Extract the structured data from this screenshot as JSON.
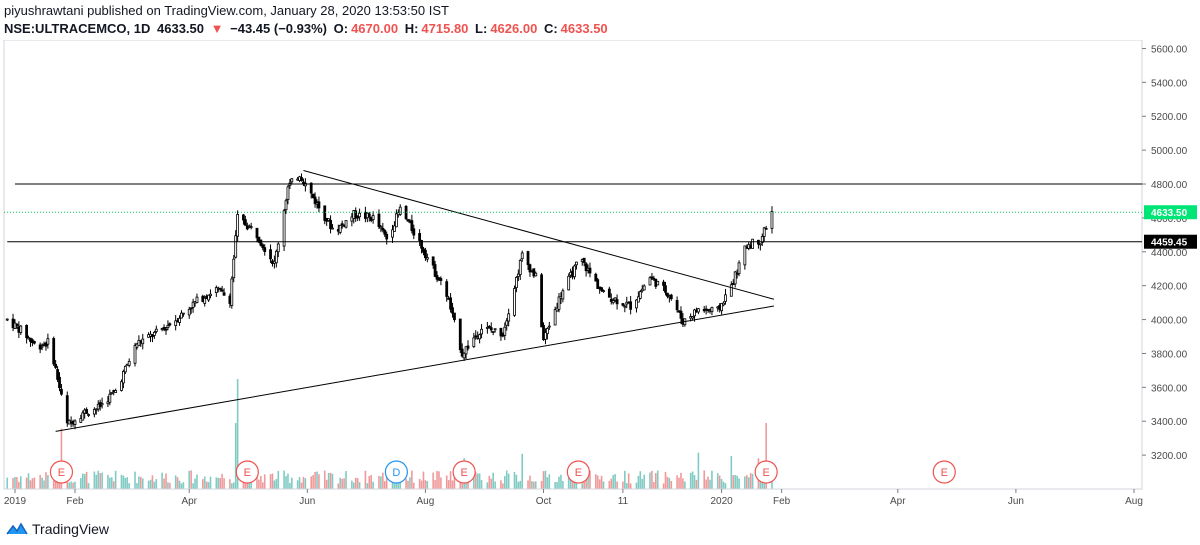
{
  "header": {
    "publish_line": "piyushrawtani published on TradingView.com, January 28, 2020 13:53:50 IST",
    "symbol": "NSE:ULTRACEMCO, 1D",
    "last": "4633.50",
    "change": "−43.45 (−0.93%)",
    "o_label": "O:",
    "o_value": "4670.00",
    "h_label": "H:",
    "h_value": "4715.80",
    "l_label": "L:",
    "l_value": "4626.00",
    "c_label": "C:",
    "c_value": "4633.50"
  },
  "footer": {
    "brand": "TradingView",
    "logo_icon": "tradingview-logo-icon"
  },
  "colors": {
    "up": "#26a69a",
    "down": "#ef5350",
    "candle": "#000000",
    "last_price_line": "#00c853",
    "last_price_badge": "#00e676",
    "level_badge": "#000000",
    "event_earnings": "#ef5350",
    "event_dividend": "#2196f3"
  },
  "chart_data": {
    "type": "candlestick",
    "symbol": "NSE:ULTRACEMCO",
    "interval": "1D",
    "ylim": [
      3000,
      5650
    ],
    "y_ticks": [
      3200,
      3400,
      3600,
      3800,
      4000,
      4200,
      4400,
      4600,
      4800,
      5000,
      5200,
      5400,
      5600
    ],
    "y_tick_labels": [
      "3200.00",
      "3400.00",
      "3600.00",
      "3800.00",
      "4000.00",
      "4200.00",
      "4400.00",
      "4600.00",
      "4800.00",
      "5000.00",
      "5200.00",
      "5400.00",
      "5600.00"
    ],
    "x_ticks": [
      {
        "label": "2019",
        "date": "2019-01-01"
      },
      {
        "label": "Feb",
        "date": "2019-02-01"
      },
      {
        "label": "Apr",
        "date": "2019-04-01"
      },
      {
        "label": "Jun",
        "date": "2019-06-01"
      },
      {
        "label": "Aug",
        "date": "2019-08-01"
      },
      {
        "label": "Oct",
        "date": "2019-10-01"
      },
      {
        "label": "11",
        "date": "2019-11-11"
      },
      {
        "label": "2020",
        "date": "2020-01-01"
      },
      {
        "label": "Feb",
        "date": "2020-02-01"
      },
      {
        "label": "Apr",
        "date": "2020-04-01"
      },
      {
        "label": "Jun",
        "date": "2020-06-01"
      },
      {
        "label": "Aug",
        "date": "2020-08-01"
      }
    ],
    "price_path": [
      [
        "2018-12-28",
        4000
      ],
      [
        "2019-01-05",
        3930
      ],
      [
        "2019-01-12",
        3840
      ],
      [
        "2019-01-19",
        3870
      ],
      [
        "2019-01-24",
        3600
      ],
      [
        "2019-01-28",
        3380
      ],
      [
        "2019-02-05",
        3450
      ],
      [
        "2019-02-13",
        3480
      ],
      [
        "2019-02-22",
        3580
      ],
      [
        "2019-03-05",
        3860
      ],
      [
        "2019-03-15",
        3920
      ],
      [
        "2019-03-25",
        4000
      ],
      [
        "2019-04-05",
        4110
      ],
      [
        "2019-04-15",
        4180
      ],
      [
        "2019-04-22",
        4120
      ],
      [
        "2019-04-26",
        4600
      ],
      [
        "2019-05-05",
        4520
      ],
      [
        "2019-05-15",
        4330
      ],
      [
        "2019-05-22",
        4780
      ],
      [
        "2019-05-28",
        4860
      ],
      [
        "2019-06-05",
        4700
      ],
      [
        "2019-06-15",
        4520
      ],
      [
        "2019-06-25",
        4620
      ],
      [
        "2019-07-05",
        4600
      ],
      [
        "2019-07-12",
        4480
      ],
      [
        "2019-07-19",
        4650
      ],
      [
        "2019-07-28",
        4480
      ],
      [
        "2019-08-05",
        4300
      ],
      [
        "2019-08-12",
        4150
      ],
      [
        "2019-08-20",
        3800
      ],
      [
        "2019-08-30",
        3950
      ],
      [
        "2019-09-10",
        3920
      ],
      [
        "2019-09-20",
        4380
      ],
      [
        "2019-09-27",
        4250
      ],
      [
        "2019-10-01",
        3880
      ],
      [
        "2019-10-10",
        4150
      ],
      [
        "2019-10-20",
        4360
      ],
      [
        "2019-11-01",
        4150
      ],
      [
        "2019-11-15",
        4080
      ],
      [
        "2019-11-25",
        4250
      ],
      [
        "2019-12-05",
        4150
      ],
      [
        "2019-12-12",
        3990
      ],
      [
        "2019-12-20",
        4060
      ],
      [
        "2019-12-30",
        4050
      ],
      [
        "2020-01-06",
        4200
      ],
      [
        "2020-01-14",
        4440
      ],
      [
        "2020-01-21",
        4470
      ],
      [
        "2020-01-27",
        4633.5
      ]
    ],
    "volume_peaks": [
      [
        "2019-01-25",
        0.55
      ],
      [
        "2019-04-26",
        1.0
      ],
      [
        "2019-04-25",
        0.6
      ],
      [
        "2019-08-21",
        0.28
      ],
      [
        "2019-09-20",
        0.32
      ],
      [
        "2019-12-20",
        0.33
      ],
      [
        "2020-01-06",
        0.3
      ],
      [
        "2020-01-20",
        0.28
      ],
      [
        "2020-01-24",
        0.6
      ]
    ],
    "horizontal_lines": [
      {
        "price": 4800,
        "start": "2019-01-01"
      },
      {
        "price": 4459.45,
        "start": "2018-12-28"
      }
    ],
    "trendlines": [
      {
        "from": [
          "2019-05-30",
          4880
        ],
        "to": [
          "2020-01-28",
          4120
        ]
      },
      {
        "from": [
          "2019-01-22",
          3340
        ],
        "to": [
          "2020-01-28",
          4080
        ]
      }
    ],
    "last_price": {
      "value": 4633.5,
      "label": "4633.50"
    },
    "price_labels": [
      {
        "value": 4459.45,
        "label": "4459.45"
      }
    ],
    "events": [
      {
        "type": "E",
        "date": "2019-01-25"
      },
      {
        "type": "E",
        "date": "2019-05-01"
      },
      {
        "type": "D",
        "date": "2019-07-17"
      },
      {
        "type": "E",
        "date": "2019-08-21"
      },
      {
        "type": "E",
        "date": "2019-10-19"
      },
      {
        "type": "E",
        "date": "2020-01-24"
      },
      {
        "type": "E",
        "date": "2020-04-25"
      }
    ]
  }
}
